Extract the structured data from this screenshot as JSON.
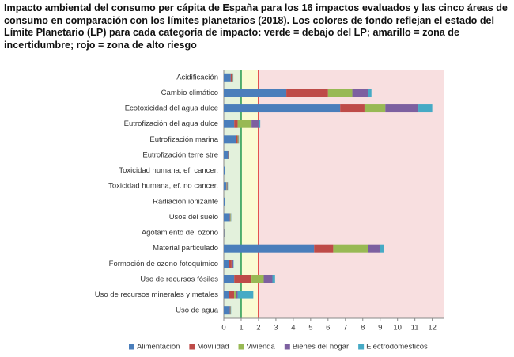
{
  "chart_data": {
    "type": "bar",
    "orientation": "horizontal",
    "stacked": true,
    "title": "Impacto ambiental del consumo per cápita de España para los 16 impactos evaluados y las cinco áreas de consumo en comparación con los límites planetarios (2018). Los colores de fondo reflejan el estado del Límite Planetario (LP) para cada categoría de impacto: verde = debajo del LP; amarillo = zona de incertidumbre; rojo = zona de alto riesgo",
    "categories": [
      "Acidificación",
      "Cambio climático",
      "Ecotoxicidad del agua dulce",
      "Eutrofización del agua dulce",
      "Eutrofización marina",
      "Eutrofización terre stre",
      "Toxicidad humana, ef. cancer.",
      "Toxicidad humana, ef. no cancer.",
      "Radiación ionizante",
      "Usos del suelo",
      "Agotamiento del ozono",
      "Material particulado",
      "Formación de ozono fotoquímico",
      "Uso de recursos fósiles",
      "Uso de recursos minerales y metales",
      "Uso de agua"
    ],
    "series": [
      {
        "name": "Alimentación",
        "color": "#4a7ebb",
        "values": [
          0.4,
          3.6,
          6.7,
          0.6,
          0.7,
          0.25,
          0.05,
          0.15,
          0.05,
          0.35,
          0.02,
          5.2,
          0.3,
          0.6,
          0.3,
          0.35
        ]
      },
      {
        "name": "Movilidad",
        "color": "#be4b48",
        "values": [
          0.1,
          2.4,
          1.4,
          0.2,
          0.1,
          0.02,
          0.01,
          0.02,
          0.01,
          0.02,
          0.01,
          1.1,
          0.15,
          1.0,
          0.3,
          0.02
        ]
      },
      {
        "name": "Vivienda",
        "color": "#98b954",
        "values": [
          0.02,
          1.4,
          1.2,
          0.8,
          0.05,
          0.02,
          0.01,
          0.03,
          0.02,
          0.03,
          0.01,
          2.0,
          0.05,
          0.7,
          0.1,
          0.02
        ]
      },
      {
        "name": "Bienes del hogar",
        "color": "#7d60a0",
        "values": [
          0.02,
          0.9,
          1.9,
          0.4,
          0.02,
          0.01,
          0.01,
          0.03,
          0.01,
          0.02,
          0.01,
          0.7,
          0.05,
          0.5,
          0.1,
          0.02
        ]
      },
      {
        "name": "Electrodomésticos",
        "color": "#46aac5",
        "values": [
          0.01,
          0.2,
          0.8,
          0.1,
          0.01,
          0.01,
          0.0,
          0.01,
          0.0,
          0.01,
          0.0,
          0.2,
          0.02,
          0.15,
          0.9,
          0.01
        ]
      }
    ],
    "xlim": [
      0,
      12.7
    ],
    "xticks": [
      0,
      1,
      2,
      3,
      4,
      5,
      6,
      7,
      8,
      9,
      10,
      11,
      12
    ],
    "zones": [
      {
        "end": 1,
        "color": "#e3f1dc",
        "line": "#2f9e55"
      },
      {
        "end": 2,
        "color": "#fbfbd2",
        "line": "#e0383a"
      },
      {
        "end": null,
        "color": "#f8dfe0"
      }
    ],
    "legend": "bottom"
  }
}
